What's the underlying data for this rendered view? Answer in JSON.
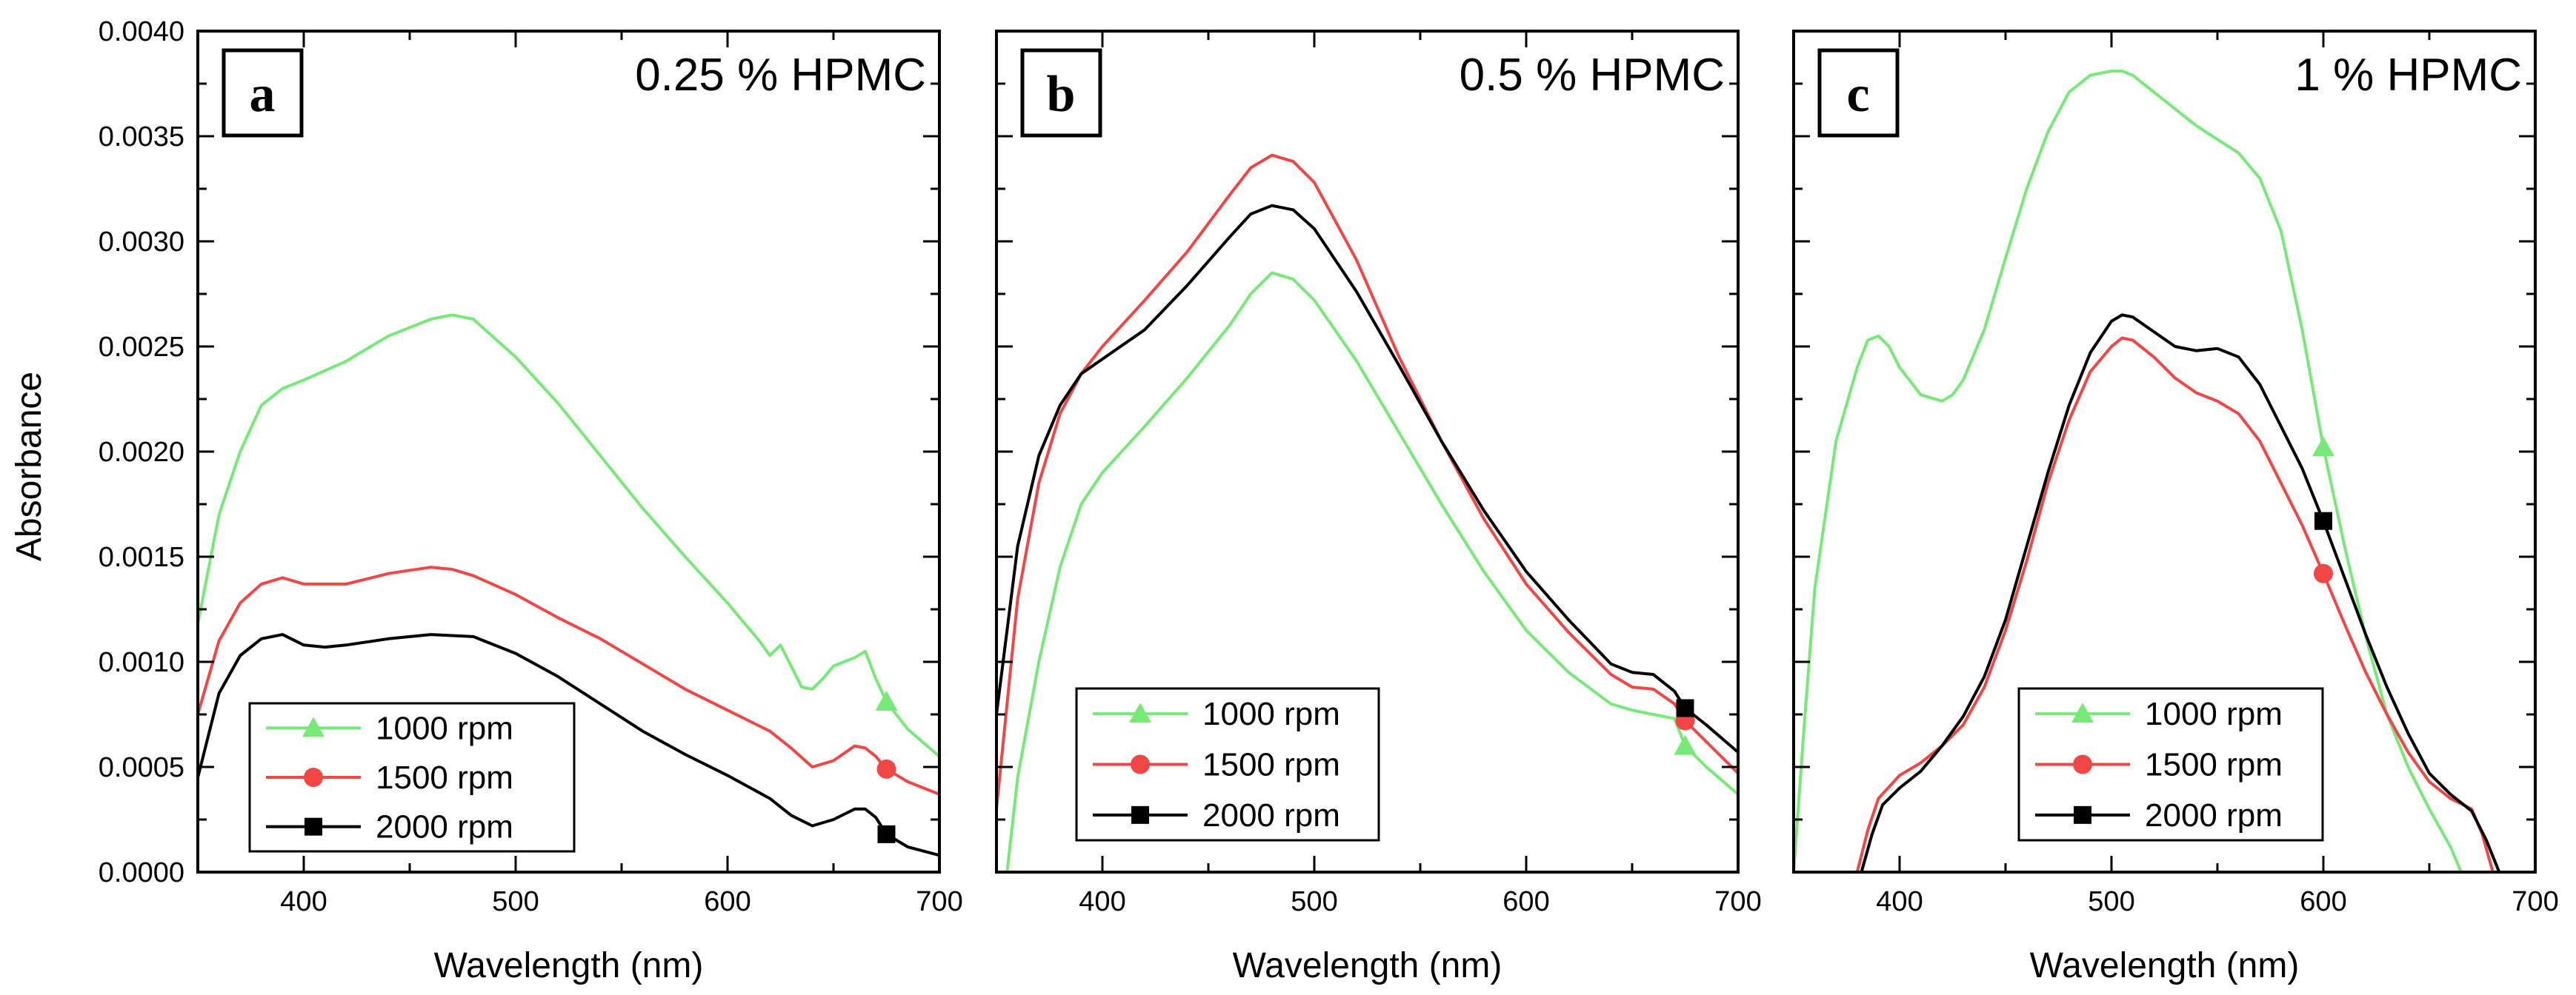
{
  "figure": {
    "ylabel": "Absorbance",
    "xlabel": "Wavelength (nm)"
  },
  "colors": {
    "1000 rpm": "#77e977",
    "1500 rpm": "#f04646",
    "2000 rpm": "#000000"
  },
  "chart_data": [
    {
      "type": "line",
      "panel_letter": "a",
      "title": "0.25 % HPMC",
      "xlabel": "Wavelength (nm)",
      "ylabel": "Absorbance",
      "xlim": [
        350,
        700
      ],
      "ylim": [
        0,
        0.004
      ],
      "xticks": [
        "400",
        "500",
        "600",
        "700"
      ],
      "yticks": [
        "0.0000",
        "0.0005",
        "0.0010",
        "0.0015",
        "0.0020",
        "0.0025",
        "0.0030",
        "0.0035",
        "0.0040"
      ],
      "legend_position": "bottom-left",
      "series": [
        {
          "name": "1000 rpm",
          "marker": "triangle",
          "marker_at": [
            675,
            0.00081
          ],
          "x": [
            350,
            360,
            370,
            380,
            390,
            400,
            420,
            440,
            460,
            470,
            480,
            500,
            520,
            540,
            560,
            580,
            600,
            610,
            615,
            620,
            625,
            630,
            635,
            640,
            645,
            650,
            655,
            660,
            665,
            670,
            675,
            685,
            700
          ],
          "y": [
            0.00118,
            0.0017,
            0.002,
            0.00222,
            0.0023,
            0.00234,
            0.00243,
            0.00255,
            0.00263,
            0.00265,
            0.00263,
            0.00245,
            0.00223,
            0.00198,
            0.00173,
            0.0015,
            0.00128,
            0.00116,
            0.0011,
            0.00103,
            0.00108,
            0.00098,
            0.00088,
            0.00087,
            0.00092,
            0.00098,
            0.001,
            0.00102,
            0.00105,
            0.00092,
            0.00081,
            0.00068,
            0.00055
          ]
        },
        {
          "name": "1500 rpm",
          "marker": "circle",
          "marker_at": [
            675,
            0.00049
          ],
          "x": [
            350,
            360,
            370,
            380,
            390,
            400,
            420,
            440,
            460,
            470,
            480,
            500,
            520,
            540,
            560,
            580,
            600,
            620,
            630,
            640,
            650,
            660,
            665,
            670,
            675,
            685,
            700
          ],
          "y": [
            0.00075,
            0.0011,
            0.00128,
            0.00137,
            0.0014,
            0.00137,
            0.00137,
            0.00142,
            0.00145,
            0.00144,
            0.00141,
            0.00132,
            0.00121,
            0.00111,
            0.00099,
            0.00087,
            0.00077,
            0.00067,
            0.00059,
            0.0005,
            0.00053,
            0.0006,
            0.00059,
            0.00055,
            0.00049,
            0.00043,
            0.00037
          ]
        },
        {
          "name": "2000 rpm",
          "marker": "square",
          "marker_at": [
            675,
            0.00018
          ],
          "x": [
            350,
            360,
            370,
            380,
            390,
            400,
            410,
            420,
            440,
            460,
            480,
            500,
            520,
            540,
            560,
            580,
            600,
            620,
            630,
            640,
            650,
            660,
            665,
            670,
            675,
            685,
            700
          ],
          "y": [
            0.00045,
            0.00085,
            0.00103,
            0.00111,
            0.00113,
            0.00108,
            0.00107,
            0.00108,
            0.00111,
            0.00113,
            0.00112,
            0.00104,
            0.00093,
            0.0008,
            0.00067,
            0.00056,
            0.00046,
            0.00035,
            0.00027,
            0.00022,
            0.00025,
            0.0003,
            0.0003,
            0.00026,
            0.00018,
            0.00012,
            8e-05
          ]
        }
      ]
    },
    {
      "type": "line",
      "panel_letter": "b",
      "title": "0.5 % HPMC",
      "xlabel": "Wavelength (nm)",
      "ylabel": "",
      "xlim": [
        350,
        700
      ],
      "ylim": [
        0,
        0.004
      ],
      "xticks": [
        "400",
        "500",
        "600",
        "700"
      ],
      "legend_position": "bottom-left",
      "series": [
        {
          "name": "1000 rpm",
          "marker": "triangle",
          "marker_at": [
            675,
            0.0006
          ],
          "x": [
            355,
            360,
            370,
            380,
            390,
            400,
            420,
            440,
            460,
            470,
            480,
            490,
            500,
            520,
            540,
            560,
            580,
            600,
            620,
            640,
            650,
            660,
            670,
            675,
            685,
            700
          ],
          "y": [
            0.0,
            0.00045,
            0.001,
            0.00145,
            0.00175,
            0.0019,
            0.00212,
            0.00235,
            0.0026,
            0.00275,
            0.00285,
            0.00282,
            0.00272,
            0.00243,
            0.00209,
            0.00175,
            0.00143,
            0.00115,
            0.00095,
            0.0008,
            0.00077,
            0.00075,
            0.00073,
            0.0006,
            0.0005,
            0.00037
          ]
        },
        {
          "name": "1500 rpm",
          "marker": "circle",
          "marker_at": [
            675,
            0.00072
          ],
          "x": [
            350,
            355,
            360,
            370,
            380,
            390,
            400,
            420,
            440,
            460,
            470,
            480,
            490,
            500,
            520,
            540,
            560,
            580,
            600,
            620,
            640,
            650,
            660,
            670,
            675,
            685,
            700
          ],
          "y": [
            0.0003,
            0.0008,
            0.0013,
            0.00185,
            0.00218,
            0.00237,
            0.0025,
            0.00272,
            0.00295,
            0.00322,
            0.00335,
            0.00341,
            0.00338,
            0.00328,
            0.00291,
            0.00245,
            0.00205,
            0.00168,
            0.00137,
            0.00114,
            0.00094,
            0.00088,
            0.00087,
            0.0008,
            0.00072,
            0.00062,
            0.00047
          ]
        },
        {
          "name": "2000 rpm",
          "marker": "square",
          "marker_at": [
            675,
            0.00078
          ],
          "x": [
            350,
            355,
            360,
            370,
            380,
            390,
            400,
            420,
            440,
            460,
            470,
            480,
            490,
            500,
            520,
            540,
            560,
            580,
            600,
            620,
            640,
            650,
            660,
            670,
            675,
            685,
            700
          ],
          "y": [
            0.00075,
            0.00115,
            0.00155,
            0.00198,
            0.00222,
            0.00237,
            0.00244,
            0.00258,
            0.00279,
            0.00302,
            0.00313,
            0.00317,
            0.00315,
            0.00306,
            0.00276,
            0.00241,
            0.00205,
            0.00172,
            0.00143,
            0.0012,
            0.00099,
            0.00095,
            0.00094,
            0.00086,
            0.00078,
            0.0007,
            0.00057
          ]
        }
      ]
    },
    {
      "type": "line",
      "panel_letter": "c",
      "title": "1 % HPMC",
      "xlabel": "Wavelength (nm)",
      "ylabel": "",
      "xlim": [
        350,
        700
      ],
      "ylim": [
        0,
        0.004
      ],
      "xticks": [
        "400",
        "500",
        "600",
        "700"
      ],
      "legend_position": "bottom-center",
      "series": [
        {
          "name": "1000 rpm",
          "marker": "triangle",
          "marker_at": [
            600,
            0.00202
          ],
          "x": [
            350,
            355,
            360,
            370,
            380,
            385,
            390,
            395,
            400,
            410,
            420,
            425,
            430,
            440,
            450,
            460,
            470,
            480,
            490,
            500,
            505,
            510,
            520,
            540,
            560,
            570,
            580,
            590,
            600,
            610,
            620,
            630,
            640,
            650,
            660,
            665
          ],
          "y": [
            0.0,
            0.0007,
            0.00135,
            0.00205,
            0.0024,
            0.00253,
            0.00255,
            0.0025,
            0.0024,
            0.00227,
            0.00224,
            0.00227,
            0.00234,
            0.00258,
            0.00292,
            0.00325,
            0.00352,
            0.00371,
            0.00379,
            0.00381,
            0.00381,
            0.00379,
            0.00371,
            0.00355,
            0.00342,
            0.0033,
            0.00305,
            0.00258,
            0.00202,
            0.00155,
            0.00112,
            0.00075,
            0.0005,
            0.0003,
            0.00012,
            0.0
          ]
        },
        {
          "name": "1500 rpm",
          "marker": "circle",
          "marker_at": [
            600,
            0.00142
          ],
          "x": [
            380,
            385,
            390,
            400,
            410,
            420,
            430,
            440,
            450,
            460,
            470,
            480,
            490,
            500,
            505,
            510,
            520,
            530,
            540,
            550,
            560,
            570,
            580,
            590,
            600,
            610,
            620,
            630,
            640,
            650,
            660,
            670,
            675,
            680
          ],
          "y": [
            0.0,
            0.0002,
            0.00035,
            0.00046,
            0.00052,
            0.0006,
            0.0007,
            0.00088,
            0.00115,
            0.00148,
            0.00185,
            0.00215,
            0.00238,
            0.0025,
            0.00254,
            0.00253,
            0.00245,
            0.00235,
            0.00228,
            0.00224,
            0.00218,
            0.00205,
            0.00185,
            0.00165,
            0.00142,
            0.00118,
            0.00095,
            0.00075,
            0.00057,
            0.00043,
            0.00035,
            0.0003,
            0.00018,
            0.0
          ]
        },
        {
          "name": "2000 rpm",
          "marker": "square",
          "marker_at": [
            600,
            0.00167
          ],
          "x": [
            382,
            387,
            392,
            400,
            410,
            420,
            430,
            440,
            450,
            460,
            470,
            480,
            490,
            500,
            505,
            510,
            520,
            530,
            540,
            550,
            560,
            570,
            580,
            590,
            600,
            610,
            620,
            630,
            640,
            650,
            660,
            670,
            677,
            683
          ],
          "y": [
            0.0,
            0.00018,
            0.00032,
            0.0004,
            0.00048,
            0.0006,
            0.00074,
            0.00093,
            0.0012,
            0.00155,
            0.0019,
            0.00222,
            0.00247,
            0.00262,
            0.00265,
            0.00264,
            0.00257,
            0.0025,
            0.00248,
            0.00249,
            0.00245,
            0.00232,
            0.00212,
            0.00192,
            0.00167,
            0.0014,
            0.00113,
            0.00088,
            0.00066,
            0.00047,
            0.00037,
            0.00029,
            0.00015,
            0.0
          ]
        }
      ]
    }
  ]
}
